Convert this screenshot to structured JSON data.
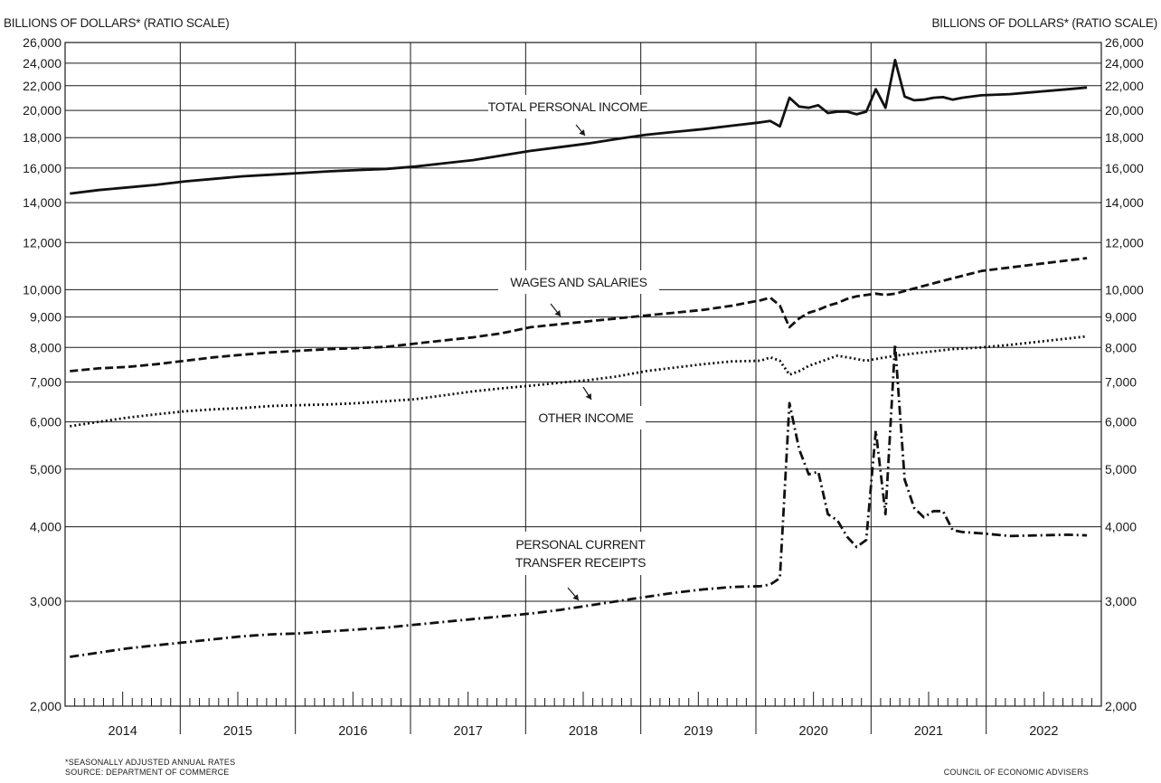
{
  "chart_data": {
    "type": "line",
    "ylabel_left": "BILLIONS OF DOLLARS* (RATIO SCALE)",
    "ylabel_right": "BILLIONS OF DOLLARS* (RATIO SCALE)",
    "y_scale": "log",
    "ylim": [
      2000,
      26000
    ],
    "y_ticks": [
      {
        "value": 2000,
        "label": "2,000"
      },
      {
        "value": 3000,
        "label": "3,000"
      },
      {
        "value": 4000,
        "label": "4,000"
      },
      {
        "value": 5000,
        "label": "5,000"
      },
      {
        "value": 6000,
        "label": "6,000"
      },
      {
        "value": 7000,
        "label": "7,000"
      },
      {
        "value": 8000,
        "label": "8,000"
      },
      {
        "value": 9000,
        "label": "9,000"
      },
      {
        "value": 10000,
        "label": "10,000"
      },
      {
        "value": 12000,
        "label": "12,000"
      },
      {
        "value": 14000,
        "label": "14,000"
      },
      {
        "value": 16000,
        "label": "16,000"
      },
      {
        "value": 18000,
        "label": "18,000"
      },
      {
        "value": 20000,
        "label": "20,000"
      },
      {
        "value": 22000,
        "label": "22,000"
      },
      {
        "value": 24000,
        "label": "24,000"
      },
      {
        "value": 26000,
        "label": "26,000"
      }
    ],
    "x_axis": {
      "frequency": "monthly",
      "start": "2014-01",
      "end": "2022-12",
      "year_labels": [
        "2014",
        "2015",
        "2016",
        "2017",
        "2018",
        "2019",
        "2020",
        "2021",
        "2022"
      ]
    },
    "grid": true,
    "series": [
      {
        "name": "TOTAL PERSONAL INCOME",
        "style": "solid",
        "points": [
          [
            "2014-01",
            14500
          ],
          [
            "2014-04",
            14700
          ],
          [
            "2014-07",
            14850
          ],
          [
            "2014-10",
            15000
          ],
          [
            "2015-01",
            15200
          ],
          [
            "2015-04",
            15350
          ],
          [
            "2015-07",
            15500
          ],
          [
            "2015-10",
            15600
          ],
          [
            "2016-01",
            15700
          ],
          [
            "2016-04",
            15800
          ],
          [
            "2016-07",
            15880
          ],
          [
            "2016-10",
            15950
          ],
          [
            "2017-01",
            16100
          ],
          [
            "2017-04",
            16300
          ],
          [
            "2017-07",
            16500
          ],
          [
            "2017-10",
            16800
          ],
          [
            "2018-01",
            17100
          ],
          [
            "2018-04",
            17350
          ],
          [
            "2018-07",
            17600
          ],
          [
            "2018-10",
            17900
          ],
          [
            "2019-01",
            18200
          ],
          [
            "2019-04",
            18400
          ],
          [
            "2019-07",
            18600
          ],
          [
            "2019-10",
            18850
          ],
          [
            "2020-01",
            19100
          ],
          [
            "2020-02",
            19200
          ],
          [
            "2020-03",
            18800
          ],
          [
            "2020-04",
            21000
          ],
          [
            "2020-05",
            20300
          ],
          [
            "2020-06",
            20200
          ],
          [
            "2020-07",
            20400
          ],
          [
            "2020-08",
            19800
          ],
          [
            "2020-09",
            19900
          ],
          [
            "2020-10",
            19900
          ],
          [
            "2020-11",
            19700
          ],
          [
            "2020-12",
            19900
          ],
          [
            "2021-01",
            21700
          ],
          [
            "2021-02",
            20200
          ],
          [
            "2021-03",
            24300
          ],
          [
            "2021-04",
            21100
          ],
          [
            "2021-05",
            20800
          ],
          [
            "2021-06",
            20850
          ],
          [
            "2021-07",
            21000
          ],
          [
            "2021-08",
            21050
          ],
          [
            "2021-09",
            20850
          ],
          [
            "2021-10",
            21000
          ],
          [
            "2021-12",
            21200
          ],
          [
            "2022-03",
            21300
          ],
          [
            "2022-06",
            21500
          ],
          [
            "2022-09",
            21700
          ],
          [
            "2022-11",
            21850
          ]
        ]
      },
      {
        "name": "WAGES AND SALARIES",
        "style": "dashed",
        "points": [
          [
            "2014-01",
            7300
          ],
          [
            "2014-04",
            7380
          ],
          [
            "2014-07",
            7420
          ],
          [
            "2014-10",
            7500
          ],
          [
            "2015-01",
            7600
          ],
          [
            "2015-04",
            7700
          ],
          [
            "2015-07",
            7780
          ],
          [
            "2015-10",
            7850
          ],
          [
            "2016-01",
            7900
          ],
          [
            "2016-04",
            7950
          ],
          [
            "2016-07",
            7980
          ],
          [
            "2016-10",
            8020
          ],
          [
            "2017-01",
            8120
          ],
          [
            "2017-04",
            8220
          ],
          [
            "2017-07",
            8320
          ],
          [
            "2017-10",
            8450
          ],
          [
            "2018-01",
            8650
          ],
          [
            "2018-04",
            8750
          ],
          [
            "2018-07",
            8850
          ],
          [
            "2018-10",
            8950
          ],
          [
            "2019-01",
            9050
          ],
          [
            "2019-04",
            9150
          ],
          [
            "2019-07",
            9250
          ],
          [
            "2019-10",
            9400
          ],
          [
            "2020-01",
            9600
          ],
          [
            "2020-02",
            9700
          ],
          [
            "2020-03",
            9400
          ],
          [
            "2020-04",
            8650
          ],
          [
            "2020-05",
            8950
          ],
          [
            "2020-06",
            9150
          ],
          [
            "2020-07",
            9250
          ],
          [
            "2020-08",
            9400
          ],
          [
            "2020-09",
            9500
          ],
          [
            "2020-10",
            9650
          ],
          [
            "2020-11",
            9750
          ],
          [
            "2020-12",
            9800
          ],
          [
            "2021-01",
            9850
          ],
          [
            "2021-02",
            9800
          ],
          [
            "2021-03",
            9850
          ],
          [
            "2021-04",
            9950
          ],
          [
            "2021-05",
            10050
          ],
          [
            "2021-06",
            10150
          ],
          [
            "2021-07",
            10250
          ],
          [
            "2021-08",
            10350
          ],
          [
            "2021-09",
            10450
          ],
          [
            "2021-10",
            10550
          ],
          [
            "2021-11",
            10650
          ],
          [
            "2021-12",
            10750
          ],
          [
            "2022-01",
            10800
          ],
          [
            "2022-03",
            10900
          ],
          [
            "2022-06",
            11050
          ],
          [
            "2022-09",
            11200
          ],
          [
            "2022-11",
            11300
          ]
        ]
      },
      {
        "name": "OTHER INCOME",
        "style": "dotted",
        "points": [
          [
            "2014-01",
            5900
          ],
          [
            "2014-04",
            6000
          ],
          [
            "2014-07",
            6100
          ],
          [
            "2014-10",
            6180
          ],
          [
            "2015-01",
            6250
          ],
          [
            "2015-04",
            6300
          ],
          [
            "2015-07",
            6330
          ],
          [
            "2015-10",
            6380
          ],
          [
            "2016-01",
            6400
          ],
          [
            "2016-04",
            6420
          ],
          [
            "2016-07",
            6450
          ],
          [
            "2016-10",
            6500
          ],
          [
            "2017-01",
            6550
          ],
          [
            "2017-04",
            6650
          ],
          [
            "2017-07",
            6750
          ],
          [
            "2017-10",
            6830
          ],
          [
            "2018-01",
            6900
          ],
          [
            "2018-04",
            6980
          ],
          [
            "2018-07",
            7050
          ],
          [
            "2018-10",
            7150
          ],
          [
            "2019-01",
            7300
          ],
          [
            "2019-04",
            7400
          ],
          [
            "2019-07",
            7500
          ],
          [
            "2019-10",
            7580
          ],
          [
            "2020-01",
            7600
          ],
          [
            "2020-02",
            7700
          ],
          [
            "2020-03",
            7600
          ],
          [
            "2020-04",
            7200
          ],
          [
            "2020-05",
            7300
          ],
          [
            "2020-06",
            7450
          ],
          [
            "2020-07",
            7550
          ],
          [
            "2020-08",
            7650
          ],
          [
            "2020-09",
            7750
          ],
          [
            "2020-10",
            7700
          ],
          [
            "2020-11",
            7650
          ],
          [
            "2020-12",
            7600
          ],
          [
            "2021-01",
            7650
          ],
          [
            "2021-02",
            7700
          ],
          [
            "2021-03",
            7750
          ],
          [
            "2021-06",
            7850
          ],
          [
            "2021-09",
            7950
          ],
          [
            "2021-12",
            8000
          ],
          [
            "2022-03",
            8080
          ],
          [
            "2022-06",
            8180
          ],
          [
            "2022-09",
            8280
          ],
          [
            "2022-11",
            8350
          ]
        ]
      },
      {
        "name": "PERSONAL CURRENT TRANSFER RECEIPTS",
        "style": "dash-dot",
        "points": [
          [
            "2014-01",
            2420
          ],
          [
            "2014-04",
            2460
          ],
          [
            "2014-07",
            2500
          ],
          [
            "2014-10",
            2530
          ],
          [
            "2015-01",
            2560
          ],
          [
            "2015-04",
            2590
          ],
          [
            "2015-07",
            2620
          ],
          [
            "2015-10",
            2640
          ],
          [
            "2016-01",
            2650
          ],
          [
            "2016-04",
            2670
          ],
          [
            "2016-07",
            2690
          ],
          [
            "2016-10",
            2710
          ],
          [
            "2017-01",
            2740
          ],
          [
            "2017-04",
            2770
          ],
          [
            "2017-07",
            2800
          ],
          [
            "2017-10",
            2830
          ],
          [
            "2018-01",
            2860
          ],
          [
            "2018-04",
            2900
          ],
          [
            "2018-07",
            2950
          ],
          [
            "2018-10",
            3000
          ],
          [
            "2019-01",
            3050
          ],
          [
            "2019-04",
            3100
          ],
          [
            "2019-07",
            3140
          ],
          [
            "2019-10",
            3170
          ],
          [
            "2020-01",
            3180
          ],
          [
            "2020-02",
            3200
          ],
          [
            "2020-03",
            3280
          ],
          [
            "2020-04",
            6450
          ],
          [
            "2020-05",
            5400
          ],
          [
            "2020-06",
            4900
          ],
          [
            "2020-07",
            4950
          ],
          [
            "2020-08",
            4200
          ],
          [
            "2020-09",
            4100
          ],
          [
            "2020-10",
            3850
          ],
          [
            "2020-11",
            3700
          ],
          [
            "2020-12",
            3800
          ],
          [
            "2021-01",
            5800
          ],
          [
            "2021-02",
            4200
          ],
          [
            "2021-03",
            8100
          ],
          [
            "2021-04",
            4800
          ],
          [
            "2021-05",
            4300
          ],
          [
            "2021-06",
            4150
          ],
          [
            "2021-07",
            4250
          ],
          [
            "2021-08",
            4250
          ],
          [
            "2021-09",
            3950
          ],
          [
            "2021-10",
            3920
          ],
          [
            "2021-12",
            3900
          ],
          [
            "2022-03",
            3860
          ],
          [
            "2022-06",
            3870
          ],
          [
            "2022-09",
            3880
          ],
          [
            "2022-11",
            3870
          ]
        ]
      }
    ],
    "annotations": [
      {
        "text_lines": [
          "TOTAL PERSONAL INCOME"
        ],
        "series": "TOTAL PERSONAL INCOME"
      },
      {
        "text_lines": [
          "WAGES AND SALARIES"
        ],
        "series": "WAGES AND SALARIES"
      },
      {
        "text_lines": [
          "OTHER INCOME"
        ],
        "series": "OTHER INCOME"
      },
      {
        "text_lines": [
          "PERSONAL CURRENT",
          "TRANSFER RECEIPTS"
        ],
        "series": "PERSONAL CURRENT TRANSFER RECEIPTS"
      }
    ]
  },
  "footer": {
    "note": "*SEASONALLY ADJUSTED ANNUAL RATES",
    "source": "SOURCE: DEPARTMENT OF COMMERCE",
    "credit": "COUNCIL OF ECONOMIC ADVISERS"
  }
}
